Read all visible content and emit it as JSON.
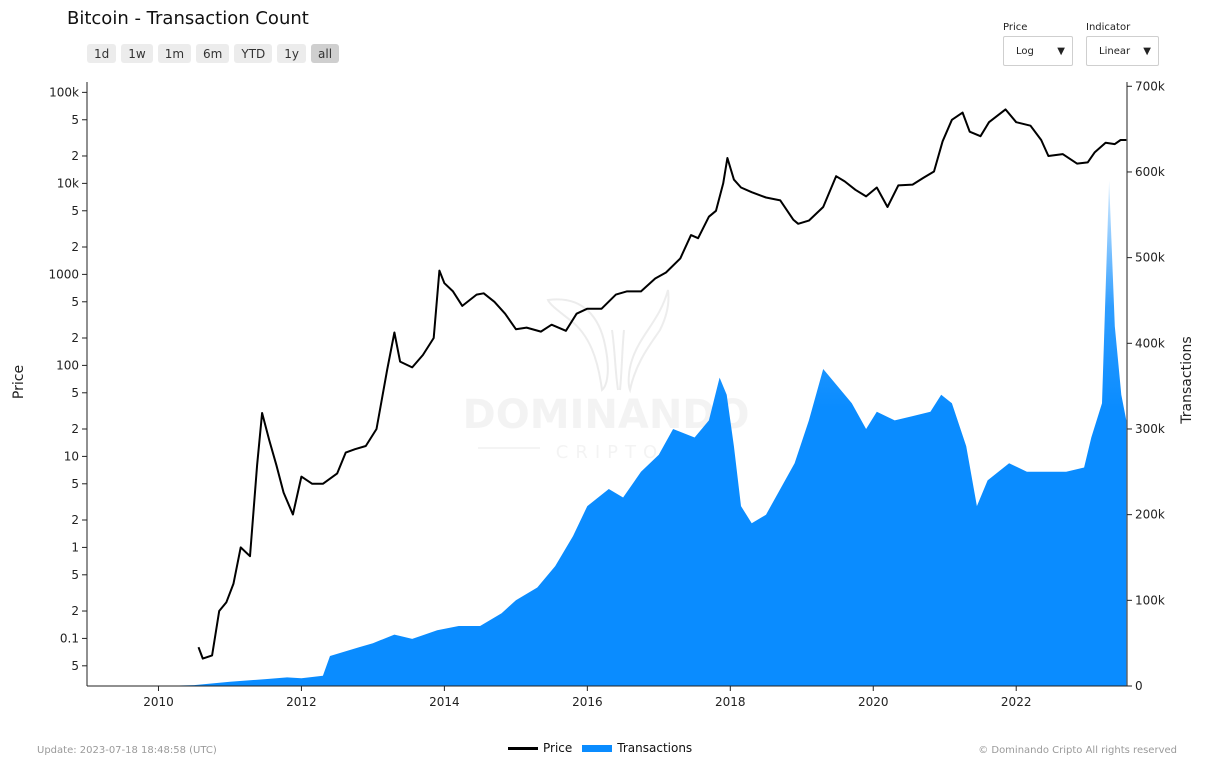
{
  "header": {
    "title": "Bitcoin - Transaction Count",
    "ranges": [
      "1d",
      "1w",
      "1m",
      "6m",
      "YTD",
      "1y",
      "all"
    ],
    "active_range": "all"
  },
  "controls": {
    "price": {
      "label": "Price",
      "value": "Log"
    },
    "indicator": {
      "label": "Indicator",
      "value": "Linear"
    }
  },
  "watermark": {
    "line1": "DOMINANDO",
    "line2": "CRIPTO"
  },
  "footer": {
    "update": "Update: 2023-07-18 18:48:58 (UTC)",
    "copyright": "© Dominando Cripto All rights reserved"
  },
  "colors": {
    "price": "#000000",
    "transactions": "#0a8cff"
  },
  "chart_data": {
    "type": "line",
    "xlim": [
      2009.0,
      2023.55
    ],
    "x_ticks": [
      2010,
      2012,
      2014,
      2016,
      2018,
      2020,
      2022
    ],
    "left_axis": {
      "label": "Price",
      "scale": "log",
      "range": [
        0.03,
        130000
      ],
      "ticks": [
        {
          "v": 0.05,
          "t": "5"
        },
        {
          "v": 0.1,
          "t": "0.1"
        },
        {
          "v": 0.2,
          "t": "2"
        },
        {
          "v": 0.5,
          "t": "5"
        },
        {
          "v": 1,
          "t": "1"
        },
        {
          "v": 2,
          "t": "2"
        },
        {
          "v": 5,
          "t": "5"
        },
        {
          "v": 10,
          "t": "10"
        },
        {
          "v": 20,
          "t": "2"
        },
        {
          "v": 50,
          "t": "5"
        },
        {
          "v": 100,
          "t": "100"
        },
        {
          "v": 200,
          "t": "2"
        },
        {
          "v": 500,
          "t": "5"
        },
        {
          "v": 1000,
          "t": "1000"
        },
        {
          "v": 2000,
          "t": "2"
        },
        {
          "v": 5000,
          "t": "5"
        },
        {
          "v": 10000,
          "t": "10k"
        },
        {
          "v": 20000,
          "t": "2"
        },
        {
          "v": 50000,
          "t": "5"
        },
        {
          "v": 100000,
          "t": "100k"
        }
      ]
    },
    "right_axis": {
      "label": "Transactions",
      "scale": "linear",
      "range": [
        0,
        705000
      ],
      "ticks": [
        {
          "v": 0,
          "t": "0"
        },
        {
          "v": 100000,
          "t": "100k"
        },
        {
          "v": 200000,
          "t": "200k"
        },
        {
          "v": 300000,
          "t": "300k"
        },
        {
          "v": 400000,
          "t": "400k"
        },
        {
          "v": 500000,
          "t": "500k"
        },
        {
          "v": 600000,
          "t": "600k"
        },
        {
          "v": 700000,
          "t": "700k"
        }
      ]
    },
    "series": [
      {
        "name": "Price",
        "axis": "left",
        "points": [
          [
            2010.56,
            0.08
          ],
          [
            2010.62,
            0.06
          ],
          [
            2010.75,
            0.065
          ],
          [
            2010.85,
            0.2
          ],
          [
            2010.95,
            0.25
          ],
          [
            2011.05,
            0.4
          ],
          [
            2011.15,
            1.0
          ],
          [
            2011.28,
            0.8
          ],
          [
            2011.38,
            8
          ],
          [
            2011.45,
            30
          ],
          [
            2011.55,
            15
          ],
          [
            2011.65,
            8
          ],
          [
            2011.75,
            4
          ],
          [
            2011.88,
            2.3
          ],
          [
            2012.0,
            6
          ],
          [
            2012.15,
            5
          ],
          [
            2012.3,
            5
          ],
          [
            2012.5,
            6.5
          ],
          [
            2012.62,
            11
          ],
          [
            2012.75,
            12
          ],
          [
            2012.9,
            13
          ],
          [
            2013.05,
            20
          ],
          [
            2013.2,
            90
          ],
          [
            2013.3,
            230
          ],
          [
            2013.38,
            110
          ],
          [
            2013.55,
            95
          ],
          [
            2013.7,
            130
          ],
          [
            2013.85,
            200
          ],
          [
            2013.93,
            1100
          ],
          [
            2014.0,
            800
          ],
          [
            2014.12,
            650
          ],
          [
            2014.25,
            450
          ],
          [
            2014.45,
            600
          ],
          [
            2014.55,
            620
          ],
          [
            2014.7,
            500
          ],
          [
            2014.85,
            370
          ],
          [
            2015.0,
            250
          ],
          [
            2015.15,
            260
          ],
          [
            2015.35,
            235
          ],
          [
            2015.5,
            280
          ],
          [
            2015.7,
            240
          ],
          [
            2015.85,
            370
          ],
          [
            2016.0,
            420
          ],
          [
            2016.2,
            420
          ],
          [
            2016.4,
            600
          ],
          [
            2016.55,
            650
          ],
          [
            2016.75,
            650
          ],
          [
            2016.95,
            900
          ],
          [
            2017.1,
            1050
          ],
          [
            2017.3,
            1500
          ],
          [
            2017.45,
            2700
          ],
          [
            2017.55,
            2500
          ],
          [
            2017.7,
            4300
          ],
          [
            2017.8,
            5000
          ],
          [
            2017.9,
            10000
          ],
          [
            2017.96,
            19000
          ],
          [
            2018.05,
            11000
          ],
          [
            2018.15,
            9000
          ],
          [
            2018.3,
            8000
          ],
          [
            2018.5,
            7000
          ],
          [
            2018.7,
            6500
          ],
          [
            2018.88,
            4000
          ],
          [
            2018.95,
            3600
          ],
          [
            2019.1,
            3900
          ],
          [
            2019.3,
            5500
          ],
          [
            2019.48,
            12000
          ],
          [
            2019.6,
            10500
          ],
          [
            2019.75,
            8500
          ],
          [
            2019.9,
            7200
          ],
          [
            2020.05,
            9000
          ],
          [
            2020.2,
            5500
          ],
          [
            2020.35,
            9500
          ],
          [
            2020.55,
            9700
          ],
          [
            2020.7,
            11500
          ],
          [
            2020.85,
            13500
          ],
          [
            2020.97,
            29000
          ],
          [
            2021.1,
            50000
          ],
          [
            2021.25,
            60000
          ],
          [
            2021.35,
            37000
          ],
          [
            2021.5,
            33000
          ],
          [
            2021.62,
            47000
          ],
          [
            2021.85,
            65000
          ],
          [
            2022.0,
            47000
          ],
          [
            2022.2,
            43000
          ],
          [
            2022.35,
            30000
          ],
          [
            2022.45,
            20000
          ],
          [
            2022.65,
            21000
          ],
          [
            2022.85,
            16500
          ],
          [
            2023.0,
            17000
          ],
          [
            2023.1,
            22000
          ],
          [
            2023.25,
            28000
          ],
          [
            2023.38,
            27000
          ],
          [
            2023.46,
            30000
          ],
          [
            2023.54,
            30000
          ]
        ]
      },
      {
        "name": "Transactions",
        "axis": "right",
        "type": "area",
        "points": [
          [
            2010.0,
            0
          ],
          [
            2010.5,
            1000
          ],
          [
            2011.0,
            5000
          ],
          [
            2011.5,
            8000
          ],
          [
            2011.8,
            10000
          ],
          [
            2012.0,
            9000
          ],
          [
            2012.3,
            12000
          ],
          [
            2012.4,
            35000
          ],
          [
            2012.8,
            45000
          ],
          [
            2013.0,
            50000
          ],
          [
            2013.3,
            60000
          ],
          [
            2013.55,
            55000
          ],
          [
            2013.9,
            65000
          ],
          [
            2014.2,
            70000
          ],
          [
            2014.5,
            70000
          ],
          [
            2014.8,
            85000
          ],
          [
            2015.0,
            100000
          ],
          [
            2015.3,
            115000
          ],
          [
            2015.55,
            140000
          ],
          [
            2015.8,
            175000
          ],
          [
            2016.0,
            210000
          ],
          [
            2016.3,
            230000
          ],
          [
            2016.5,
            220000
          ],
          [
            2016.75,
            250000
          ],
          [
            2017.0,
            270000
          ],
          [
            2017.2,
            300000
          ],
          [
            2017.5,
            290000
          ],
          [
            2017.7,
            310000
          ],
          [
            2017.85,
            360000
          ],
          [
            2017.95,
            340000
          ],
          [
            2018.05,
            280000
          ],
          [
            2018.15,
            210000
          ],
          [
            2018.3,
            190000
          ],
          [
            2018.5,
            200000
          ],
          [
            2018.7,
            230000
          ],
          [
            2018.9,
            260000
          ],
          [
            2019.1,
            310000
          ],
          [
            2019.3,
            370000
          ],
          [
            2019.5,
            350000
          ],
          [
            2019.7,
            330000
          ],
          [
            2019.9,
            300000
          ],
          [
            2020.05,
            320000
          ],
          [
            2020.3,
            310000
          ],
          [
            2020.55,
            315000
          ],
          [
            2020.8,
            320000
          ],
          [
            2020.95,
            340000
          ],
          [
            2021.1,
            330000
          ],
          [
            2021.3,
            280000
          ],
          [
            2021.45,
            210000
          ],
          [
            2021.6,
            240000
          ],
          [
            2021.9,
            260000
          ],
          [
            2022.15,
            250000
          ],
          [
            2022.4,
            250000
          ],
          [
            2022.7,
            250000
          ],
          [
            2022.95,
            255000
          ],
          [
            2023.05,
            290000
          ],
          [
            2023.2,
            330000
          ],
          [
            2023.3,
            590000
          ],
          [
            2023.38,
            420000
          ],
          [
            2023.47,
            340000
          ],
          [
            2023.54,
            310000
          ]
        ]
      }
    ]
  }
}
